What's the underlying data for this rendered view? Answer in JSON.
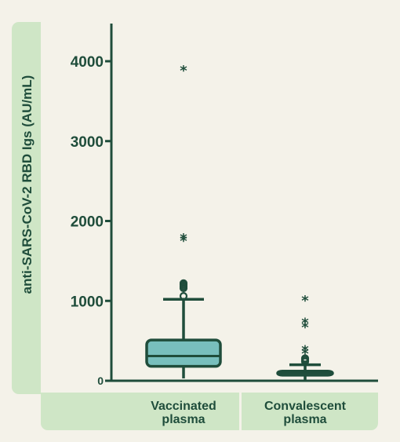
{
  "chart_data": {
    "type": "boxplot",
    "ylabel": "anti-SARS-CoV-2 RBD Igs (AU/mL)",
    "yticks": [
      0,
      1000,
      2000,
      3000,
      4000
    ],
    "ylim": [
      0,
      4500
    ],
    "categories": [
      "Vaccinated plasma",
      "Convalescent plasma"
    ],
    "category_lines": [
      [
        "Vaccinated",
        "plasma"
      ],
      [
        "Convalescent",
        "plasma"
      ]
    ],
    "boxes": [
      {
        "min": 30,
        "q1": 180,
        "median": 310,
        "q3": 510,
        "max": 1020,
        "outliers_circle": [
          1060,
          1160,
          1180,
          1200,
          1220
        ],
        "outliers_star": [
          1780,
          1810,
          3910
        ]
      },
      {
        "min": 0,
        "q1": 70,
        "median": 100,
        "q3": 120,
        "max": 200,
        "outliers_circle": [
          240,
          260,
          280
        ],
        "outliers_star": [
          370,
          410,
          700,
          750,
          1030
        ]
      }
    ],
    "colors": {
      "box_fill": "#78bfbd",
      "line": "#1f4d3b",
      "band": "#cfe6c6",
      "background": "#f4f2e9"
    },
    "grid": false,
    "legend": "none"
  }
}
